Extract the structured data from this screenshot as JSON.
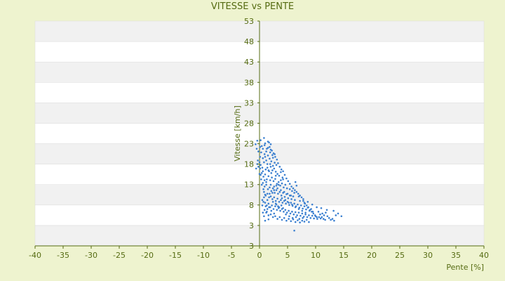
{
  "chart_data": {
    "type": "scatter",
    "title": "VITESSE vs PENTE",
    "xlabel": "Pente [%]",
    "ylabel": "Vitesse [km/h]",
    "xlim": [
      -40,
      40
    ],
    "x_ticks": [
      -40,
      -35,
      -30,
      -25,
      -20,
      -15,
      -10,
      -5,
      0,
      5,
      10,
      15,
      20,
      25,
      30,
      35,
      40
    ],
    "ylim": [
      3,
      53
    ],
    "y_tick_labels": [
      "3",
      "3",
      "8",
      "13",
      "18",
      "23",
      "28",
      "33",
      "38",
      "43",
      "48",
      "53"
    ],
    "grid": "horizontal alternating bands",
    "point_color": "#3a7fd0",
    "points": [
      [
        0.2,
        26.5
      ],
      [
        0.4,
        25.2
      ],
      [
        0.6,
        24.6
      ],
      [
        0.8,
        27.0
      ],
      [
        1.0,
        25.8
      ],
      [
        1.2,
        24.0
      ],
      [
        1.5,
        26.2
      ],
      [
        1.8,
        25.0
      ],
      [
        2.0,
        24.4
      ],
      [
        2.3,
        23.2
      ],
      [
        0.3,
        23.8
      ],
      [
        0.6,
        22.5
      ],
      [
        0.9,
        23.4
      ],
      [
        1.2,
        22.0
      ],
      [
        1.5,
        23.1
      ],
      [
        1.8,
        22.4
      ],
      [
        2.1,
        21.8
      ],
      [
        2.4,
        22.6
      ],
      [
        2.7,
        21.5
      ],
      [
        3.0,
        21.0
      ],
      [
        0.2,
        21.0
      ],
      [
        0.5,
        20.4
      ],
      [
        0.8,
        21.6
      ],
      [
        1.1,
        20.0
      ],
      [
        1.4,
        21.2
      ],
      [
        1.7,
        19.6
      ],
      [
        2.0,
        20.6
      ],
      [
        2.3,
        19.8
      ],
      [
        2.6,
        20.2
      ],
      [
        2.9,
        19.5
      ],
      [
        3.2,
        19.0
      ],
      [
        3.5,
        18.6
      ],
      [
        3.8,
        19.4
      ],
      [
        4.1,
        18.2
      ],
      [
        0.4,
        19.2
      ],
      [
        0.7,
        18.4
      ],
      [
        1.0,
        18.9
      ],
      [
        1.3,
        17.8
      ],
      [
        1.6,
        18.5
      ],
      [
        1.9,
        17.6
      ],
      [
        2.2,
        18.2
      ],
      [
        2.5,
        17.4
      ],
      [
        2.8,
        17.9
      ],
      [
        3.1,
        16.8
      ],
      [
        3.4,
        17.2
      ],
      [
        3.7,
        16.4
      ],
      [
        4.0,
        16.9
      ],
      [
        4.3,
        16.0
      ],
      [
        4.6,
        16.6
      ],
      [
        4.9,
        15.8
      ],
      [
        0.6,
        17.0
      ],
      [
        0.9,
        16.2
      ],
      [
        1.2,
        16.6
      ],
      [
        1.5,
        15.6
      ],
      [
        1.8,
        16.0
      ],
      [
        2.1,
        15.2
      ],
      [
        2.4,
        15.8
      ],
      [
        2.7,
        14.8
      ],
      [
        3.0,
        15.4
      ],
      [
        3.3,
        14.6
      ],
      [
        3.6,
        15.0
      ],
      [
        3.9,
        14.2
      ],
      [
        4.2,
        14.8
      ],
      [
        4.5,
        13.9
      ],
      [
        4.8,
        14.5
      ],
      [
        5.1,
        13.6
      ],
      [
        5.4,
        14.2
      ],
      [
        5.7,
        13.4
      ],
      [
        6.0,
        14.0
      ],
      [
        6.3,
        13.2
      ],
      [
        0.8,
        15.0
      ],
      [
        1.1,
        14.2
      ],
      [
        1.4,
        14.6
      ],
      [
        1.7,
        13.8
      ],
      [
        2.0,
        14.0
      ],
      [
        2.3,
        13.4
      ],
      [
        2.6,
        13.8
      ],
      [
        2.9,
        13.0
      ],
      [
        3.2,
        13.5
      ],
      [
        3.5,
        12.8
      ],
      [
        3.8,
        13.2
      ],
      [
        4.1,
        12.6
      ],
      [
        4.4,
        13.0
      ],
      [
        4.7,
        12.4
      ],
      [
        5.0,
        12.8
      ],
      [
        5.3,
        12.1
      ],
      [
        5.6,
        12.6
      ],
      [
        5.9,
        11.9
      ],
      [
        6.2,
        12.4
      ],
      [
        6.5,
        11.8
      ],
      [
        6.8,
        12.2
      ],
      [
        7.1,
        11.5
      ],
      [
        7.4,
        12.0
      ],
      [
        7.7,
        11.3
      ],
      [
        8.0,
        11.8
      ],
      [
        8.3,
        11.1
      ],
      [
        8.6,
        11.5
      ],
      [
        8.9,
        10.8
      ],
      [
        9.2,
        11.2
      ],
      [
        9.5,
        10.6
      ],
      [
        1.0,
        12.6
      ],
      [
        1.3,
        12.0
      ],
      [
        1.6,
        12.4
      ],
      [
        1.9,
        11.6
      ],
      [
        2.2,
        12.0
      ],
      [
        2.5,
        11.2
      ],
      [
        2.8,
        11.8
      ],
      [
        3.1,
        11.0
      ],
      [
        3.4,
        11.4
      ],
      [
        3.7,
        10.8
      ],
      [
        4.0,
        11.2
      ],
      [
        4.3,
        10.6
      ],
      [
        4.6,
        11.0
      ],
      [
        4.9,
        10.4
      ],
      [
        5.2,
        10.8
      ],
      [
        5.5,
        10.2
      ],
      [
        5.8,
        10.6
      ],
      [
        6.1,
        10.0
      ],
      [
        6.4,
        10.5
      ],
      [
        6.7,
        9.8
      ],
      [
        7.0,
        10.4
      ],
      [
        7.3,
        9.7
      ],
      [
        7.6,
        10.2
      ],
      [
        7.9,
        9.5
      ],
      [
        8.2,
        10.0
      ],
      [
        8.5,
        9.4
      ],
      [
        8.8,
        9.8
      ],
      [
        9.1,
        9.2
      ],
      [
        9.4,
        9.7
      ],
      [
        9.7,
        9.1
      ],
      [
        10.0,
        9.6
      ],
      [
        10.3,
        9.0
      ],
      [
        10.6,
        9.4
      ],
      [
        10.9,
        9.1
      ],
      [
        11.2,
        10.2
      ],
      [
        11.5,
        9.8
      ],
      [
        11.8,
        10.4
      ],
      [
        12.1,
        9.6
      ],
      [
        12.4,
        9.2
      ],
      [
        12.7,
        8.8
      ],
      [
        13.0,
        9.0
      ],
      [
        13.3,
        8.6
      ],
      [
        13.6,
        9.8
      ],
      [
        14.0,
        10.2
      ],
      [
        14.6,
        9.6
      ],
      [
        13.2,
        10.8
      ],
      [
        12.0,
        11.0
      ],
      [
        11.0,
        11.4
      ],
      [
        10.2,
        11.6
      ],
      [
        9.4,
        12.2
      ],
      [
        8.6,
        12.8
      ],
      [
        7.8,
        13.4
      ],
      [
        7.0,
        14.0
      ],
      [
        6.2,
        14.8
      ],
      [
        5.4,
        15.6
      ],
      [
        6.6,
        16.4
      ],
      [
        6.4,
        17.2
      ],
      [
        5.8,
        15.2
      ],
      [
        7.2,
        13.0
      ],
      [
        8.0,
        12.6
      ],
      [
        1.2,
        10.4
      ],
      [
        1.6,
        9.8
      ],
      [
        2.0,
        10.0
      ],
      [
        2.4,
        9.4
      ],
      [
        2.8,
        9.6
      ],
      [
        3.2,
        9.0
      ],
      [
        3.6,
        9.4
      ],
      [
        4.0,
        8.8
      ],
      [
        4.4,
        9.2
      ],
      [
        4.8,
        8.6
      ],
      [
        5.2,
        9.0
      ],
      [
        5.6,
        8.5
      ],
      [
        6.0,
        8.9
      ],
      [
        6.4,
        8.3
      ],
      [
        6.8,
        8.7
      ],
      [
        7.2,
        8.2
      ],
      [
        7.6,
        8.6
      ],
      [
        8.0,
        8.4
      ],
      [
        8.4,
        8.8
      ],
      [
        8.8,
        8.3
      ],
      [
        1.1,
        11.8
      ],
      [
        1.4,
        11.2
      ],
      [
        1.7,
        11.6
      ],
      [
        0.9,
        11.0
      ],
      [
        1.3,
        10.6
      ],
      [
        2.1,
        10.8
      ],
      [
        2.6,
        10.2
      ],
      [
        3.0,
        12.2
      ],
      [
        3.5,
        11.6
      ],
      [
        3.9,
        12.0
      ],
      [
        0.5,
        13.2
      ],
      [
        0.8,
        13.8
      ],
      [
        1.0,
        14.4
      ],
      [
        0.7,
        15.6
      ],
      [
        0.4,
        16.6
      ],
      [
        0.3,
        17.8
      ],
      [
        0.2,
        18.8
      ],
      [
        0.1,
        20.2
      ],
      [
        0.0,
        21.6
      ],
      [
        0.1,
        22.8
      ],
      [
        -0.2,
        20.6
      ],
      [
        -0.4,
        21.2
      ],
      [
        -0.6,
        20.2
      ],
      [
        -0.3,
        22.0
      ],
      [
        -0.5,
        24.6
      ],
      [
        -0.7,
        25.6
      ],
      [
        -0.4,
        26.4
      ],
      [
        -0.2,
        24.0
      ],
      [
        0.1,
        25.0
      ],
      [
        0.0,
        19.0
      ],
      [
        1.5,
        24.8
      ],
      [
        1.9,
        23.8
      ],
      [
        2.2,
        24.2
      ],
      [
        2.5,
        23.6
      ],
      [
        2.8,
        22.8
      ],
      [
        3.1,
        22.2
      ],
      [
        3.3,
        21.4
      ],
      [
        3.6,
        20.6
      ],
      [
        3.9,
        20.0
      ],
      [
        4.2,
        19.6
      ],
      [
        4.5,
        18.8
      ],
      [
        4.8,
        18.0
      ],
      [
        5.1,
        17.4
      ],
      [
        5.4,
        16.8
      ],
      [
        5.7,
        16.2
      ],
      [
        6.0,
        15.8
      ],
      [
        6.3,
        15.4
      ],
      [
        6.6,
        15.0
      ],
      [
        6.9,
        14.6
      ],
      [
        7.2,
        14.2
      ],
      [
        7.5,
        13.8
      ],
      [
        7.8,
        13.0
      ],
      [
        8.1,
        12.4
      ],
      [
        8.4,
        12.0
      ],
      [
        8.7,
        11.6
      ],
      [
        9.0,
        11.0
      ],
      [
        9.3,
        10.6
      ],
      [
        9.6,
        10.2
      ],
      [
        9.9,
        9.8
      ],
      [
        10.2,
        9.4
      ],
      [
        10.5,
        10.6
      ],
      [
        10.8,
        10.0
      ],
      [
        11.1,
        9.4
      ],
      [
        11.4,
        9.0
      ],
      [
        11.7,
        8.8
      ],
      [
        2.0,
        16.6
      ],
      [
        2.6,
        16.2
      ],
      [
        3.2,
        15.8
      ],
      [
        3.8,
        15.4
      ],
      [
        4.4,
        15.0
      ],
      [
        5.0,
        14.6
      ],
      [
        5.6,
        14.2
      ],
      [
        4.0,
        13.6
      ],
      [
        4.6,
        13.2
      ],
      [
        5.2,
        12.6
      ],
      [
        5.8,
        12.2
      ],
      [
        6.4,
        11.6
      ],
      [
        7.0,
        11.2
      ],
      [
        7.6,
        10.8
      ],
      [
        8.2,
        10.4
      ],
      [
        2.4,
        12.8
      ],
      [
        2.9,
        12.4
      ],
      [
        3.3,
        11.8
      ],
      [
        4.2,
        11.4
      ],
      [
        4.7,
        10.0
      ],
      [
        5.3,
        9.6
      ],
      [
        5.9,
        9.2
      ],
      [
        6.5,
        9.4
      ],
      [
        7.1,
        9.0
      ],
      [
        7.7,
        9.2
      ],
      [
        6.2,
        6.4
      ],
      [
        1.0,
        8.6
      ],
      [
        1.6,
        8.9
      ],
      [
        0.8,
        9.6
      ],
      [
        0.6,
        10.4
      ],
      [
        0.5,
        12.0
      ],
      [
        0.7,
        12.8
      ],
      [
        1.4,
        13.2
      ],
      [
        1.8,
        14.6
      ],
      [
        2.3,
        14.8
      ],
      [
        2.6,
        15.4
      ],
      [
        3.0,
        16.4
      ],
      [
        3.4,
        16.6
      ],
      [
        3.8,
        17.6
      ],
      [
        4.2,
        17.8
      ],
      [
        2.9,
        18.6
      ],
      [
        2.1,
        19.2
      ],
      [
        1.6,
        19.8
      ],
      [
        2.4,
        20.8
      ],
      [
        1.9,
        21.2
      ],
      [
        2.7,
        23.4
      ],
      [
        1.3,
        24.6
      ],
      [
        0.9,
        25.4
      ],
      [
        1.7,
        26.0
      ],
      [
        2.0,
        25.6
      ],
      [
        1.0,
        22.8
      ],
      [
        1.4,
        20.4
      ],
      [
        0.6,
        19.6
      ],
      [
        0.9,
        17.6
      ],
      [
        1.2,
        17.2
      ]
    ]
  }
}
